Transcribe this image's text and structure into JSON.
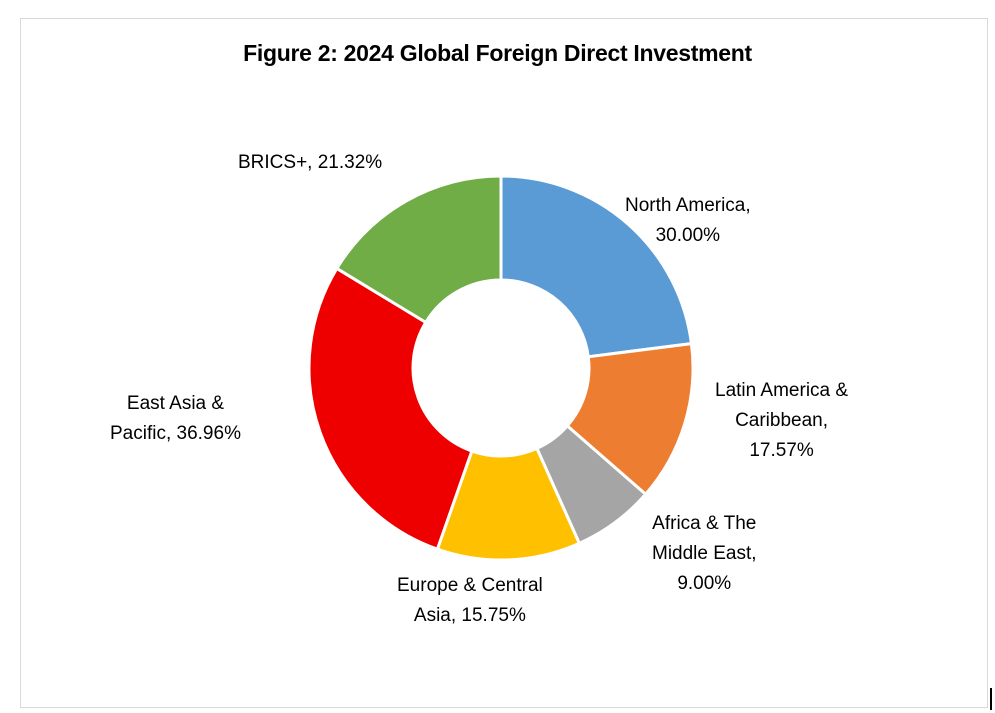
{
  "chart_data": {
    "type": "pie",
    "style": "donut",
    "title": "Figure 2: 2024 Global Foreign Direct Investment",
    "slices": [
      {
        "label": "North America",
        "value": 30.0,
        "display": "North America, 30.00%",
        "color": "#5B9BD5"
      },
      {
        "label": "Latin America & Caribbean",
        "value": 17.57,
        "display": "Latin America & Caribbean, 17.57%",
        "color": "#ED7D31"
      },
      {
        "label": "Africa & The Middle East",
        "value": 9.0,
        "display": "Africa & The Middle East, 9.00%",
        "color": "#A5A5A5"
      },
      {
        "label": "Europe & Central Asia",
        "value": 15.75,
        "display": "Europe & Central Asia, 15.75%",
        "color": "#FFC000"
      },
      {
        "label": "East Asia & Pacific",
        "value": 36.96,
        "display": "East Asia & Pacific, 36.96%",
        "color": "#EE0000"
      },
      {
        "label": "BRICS+",
        "value": 21.32,
        "display": "BRICS+, 21.32%",
        "color": "#70AD47"
      }
    ],
    "legend": "none"
  },
  "labels": {
    "na": [
      "North America,",
      "30.00%"
    ],
    "latam": [
      "Latin America &",
      "Caribbean,",
      "17.57%"
    ],
    "africa": [
      "Africa & The",
      "Middle East,",
      "9.00%"
    ],
    "europe": [
      "Europe & Central",
      "Asia, 15.75%"
    ],
    "eastasia": [
      "East Asia &",
      "Pacific, 36.96%"
    ],
    "brics": [
      "BRICS+, 21.32%"
    ]
  }
}
